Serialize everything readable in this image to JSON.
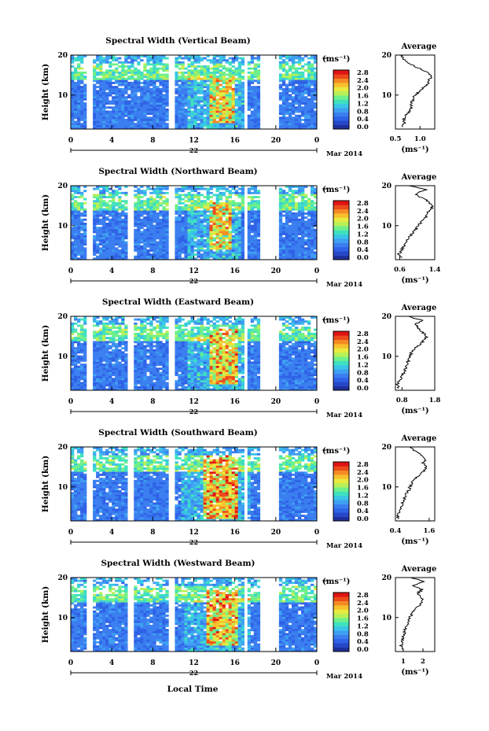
{
  "page": {
    "date_label": "Mar 2014",
    "day_label": "22",
    "xlabel": "Local Time",
    "ylabel": "Height (km)",
    "unit_label": "(ms⁻¹)",
    "profile_title": "Average"
  },
  "colorbar": {
    "ticks": [
      "0.0",
      "0.4",
      "0.8",
      "1.2",
      "1.6",
      "2.0",
      "2.4",
      "2.8"
    ],
    "colors": [
      "#1e2f9a",
      "#2747c9",
      "#2f62e6",
      "#3a7ef0",
      "#3fa0f2",
      "#39c6e6",
      "#3fe0c0",
      "#6ef08a",
      "#b8f058",
      "#e8ea40",
      "#f8c02c",
      "#f48a24",
      "#ec4a1c",
      "#e01414"
    ],
    "range": [
      0,
      3.0
    ]
  },
  "chart_data": [
    {
      "type": "heatmap",
      "title": "Spectral Width (Vertical Beam)",
      "x_ticks": [
        "0",
        "4",
        "8",
        "12",
        "16",
        "20",
        "0"
      ],
      "xlim": [
        0,
        24
      ],
      "y_ticks": [
        "20",
        "10"
      ],
      "ylim": [
        1.5,
        20
      ],
      "colorbar_range": [
        0,
        3.0
      ],
      "data_gaps_hours": [
        [
          1.5,
          2.0
        ],
        [
          9.6,
          10.0
        ],
        [
          16.8,
          17.2
        ],
        [
          18.4,
          20.4
        ]
      ],
      "high_width_region": {
        "hours": [
          13.5,
          16
        ],
        "heights_km": [
          3,
          14
        ],
        "value_ms": 2.6
      },
      "profile": {
        "title": "Average",
        "x_ticks": [
          "0.5",
          "1.0"
        ],
        "xlim": [
          0.5,
          1.3
        ],
        "xlabel": "(ms⁻¹)",
        "y_ticks": [
          "20",
          "10"
        ],
        "heights_km": [
          2,
          3,
          4,
          5,
          6,
          7,
          8,
          9,
          10,
          11,
          12,
          13,
          14,
          15,
          16,
          17,
          18,
          19,
          20
        ],
        "values": [
          0.62,
          0.7,
          0.66,
          0.72,
          0.8,
          0.84,
          0.82,
          0.86,
          0.9,
          1.0,
          1.08,
          1.16,
          1.2,
          1.22,
          1.1,
          0.92,
          0.76,
          0.66,
          0.6
        ]
      }
    },
    {
      "type": "heatmap",
      "title": "Spectral Width (Northward Beam)",
      "x_ticks": [
        "0",
        "4",
        "8",
        "12",
        "16",
        "20",
        "0"
      ],
      "xlim": [
        0,
        24
      ],
      "y_ticks": [
        "20",
        "10"
      ],
      "ylim": [
        1.5,
        20
      ],
      "colorbar_range": [
        0,
        3.0
      ],
      "data_gaps_hours": [
        [
          1.5,
          2.0
        ],
        [
          5.6,
          6.0
        ],
        [
          9.6,
          10.0
        ],
        [
          16.8,
          17.2
        ],
        [
          18.4,
          20.4
        ]
      ],
      "high_width_region": {
        "hours": [
          13.5,
          15.6
        ],
        "heights_km": [
          4,
          16
        ],
        "value_ms": 2.6
      },
      "profile": {
        "title": "Average",
        "x_ticks": [
          "0.6",
          "1.4"
        ],
        "xlim": [
          0.5,
          1.4
        ],
        "xlabel": "(ms⁻¹)",
        "y_ticks": [
          "20",
          "10"
        ],
        "heights_km": [
          2,
          3,
          4,
          5,
          6,
          7,
          8,
          9,
          10,
          11,
          12,
          13,
          14,
          15,
          16,
          17,
          18,
          19,
          20
        ],
        "values": [
          0.62,
          0.58,
          0.64,
          0.7,
          0.74,
          0.8,
          0.88,
          0.96,
          1.02,
          1.1,
          1.18,
          1.22,
          1.3,
          1.36,
          1.26,
          1.1,
          0.96,
          1.2,
          0.8
        ]
      }
    },
    {
      "type": "heatmap",
      "title": "Spectral Width (Eastward Beam)",
      "x_ticks": [
        "0",
        "4",
        "8",
        "12",
        "16",
        "20",
        "0"
      ],
      "xlim": [
        0,
        24
      ],
      "y_ticks": [
        "20",
        "10"
      ],
      "ylim": [
        1.5,
        20
      ],
      "colorbar_range": [
        0,
        3.0
      ],
      "data_gaps_hours": [
        [
          1.5,
          2.0
        ],
        [
          5.6,
          6.0
        ],
        [
          9.6,
          10.0
        ],
        [
          16.8,
          17.2
        ],
        [
          18.4,
          20.4
        ]
      ],
      "high_width_region": {
        "hours": [
          13.4,
          16.2
        ],
        "heights_km": [
          3,
          17
        ],
        "value_ms": 2.7
      },
      "profile": {
        "title": "Average",
        "x_ticks": [
          "0.8",
          "1.8"
        ],
        "xlim": [
          0.6,
          1.8
        ],
        "xlabel": "(ms⁻¹)",
        "y_ticks": [
          "20",
          "10"
        ],
        "heights_km": [
          2,
          3,
          4,
          5,
          6,
          7,
          8,
          9,
          10,
          11,
          12,
          13,
          14,
          15,
          16,
          17,
          18,
          19,
          20
        ],
        "values": [
          0.7,
          0.66,
          0.74,
          0.8,
          0.86,
          0.92,
          0.96,
          1.0,
          1.04,
          1.1,
          1.2,
          1.34,
          1.48,
          1.56,
          1.42,
          1.3,
          1.2,
          1.4,
          1.0
        ]
      }
    },
    {
      "type": "heatmap",
      "title": "Spectral Width (Southward Beam)",
      "x_ticks": [
        "0",
        "4",
        "8",
        "12",
        "16",
        "20",
        "0"
      ],
      "xlim": [
        0,
        24
      ],
      "y_ticks": [
        "20",
        "10"
      ],
      "ylim": [
        1.5,
        20
      ],
      "colorbar_range": [
        0,
        3.0
      ],
      "data_gaps_hours": [
        [
          1.5,
          2.0
        ],
        [
          5.6,
          6.0
        ],
        [
          9.6,
          10.0
        ],
        [
          16.8,
          17.2
        ],
        [
          18.4,
          20.4
        ]
      ],
      "high_width_region": {
        "hours": [
          12.8,
          16.4
        ],
        "heights_km": [
          2,
          18
        ],
        "value_ms": 2.8
      },
      "profile": {
        "title": "Average",
        "x_ticks": [
          "0.4",
          "1.6"
        ],
        "xlim": [
          0.4,
          1.8
        ],
        "xlabel": "(ms⁻¹)",
        "y_ticks": [
          "20",
          "10"
        ],
        "heights_km": [
          2,
          3,
          4,
          5,
          6,
          7,
          8,
          9,
          10,
          11,
          12,
          13,
          14,
          15,
          16,
          17,
          18,
          19,
          20
        ],
        "values": [
          0.52,
          0.48,
          0.56,
          0.62,
          0.66,
          0.72,
          0.78,
          0.86,
          0.92,
          1.0,
          1.1,
          1.24,
          1.4,
          1.52,
          1.38,
          1.5,
          1.3,
          1.1,
          0.9
        ]
      }
    },
    {
      "type": "heatmap",
      "title": "Spectral Width (Westward Beam)",
      "x_ticks": [
        "0",
        "4",
        "8",
        "12",
        "16",
        "20",
        "0"
      ],
      "xlim": [
        0,
        24
      ],
      "y_ticks": [
        "20",
        "10"
      ],
      "ylim": [
        1.5,
        20
      ],
      "colorbar_range": [
        0,
        3.0
      ],
      "data_gaps_hours": [
        [
          1.5,
          2.0
        ],
        [
          5.6,
          6.0
        ],
        [
          9.6,
          10.0
        ],
        [
          16.8,
          17.2
        ],
        [
          18.4,
          20.4
        ]
      ],
      "high_width_region": {
        "hours": [
          13.2,
          16.4
        ],
        "heights_km": [
          3,
          17
        ],
        "value_ms": 2.7
      },
      "profile": {
        "title": "Average",
        "x_ticks": [
          "1",
          "2"
        ],
        "xlim": [
          0.6,
          2.6
        ],
        "xlabel": "(ms⁻¹)",
        "y_ticks": [
          "20",
          "10"
        ],
        "heights_km": [
          2,
          3,
          4,
          5,
          6,
          7,
          8,
          9,
          10,
          11,
          12,
          13,
          14,
          15,
          16,
          17,
          18,
          19,
          20
        ],
        "values": [
          0.92,
          0.88,
          0.96,
          1.0,
          1.04,
          1.1,
          1.16,
          1.24,
          1.34,
          1.46,
          1.6,
          1.82,
          2.0,
          1.9,
          1.7,
          1.96,
          1.5,
          2.1,
          1.4
        ]
      }
    }
  ]
}
